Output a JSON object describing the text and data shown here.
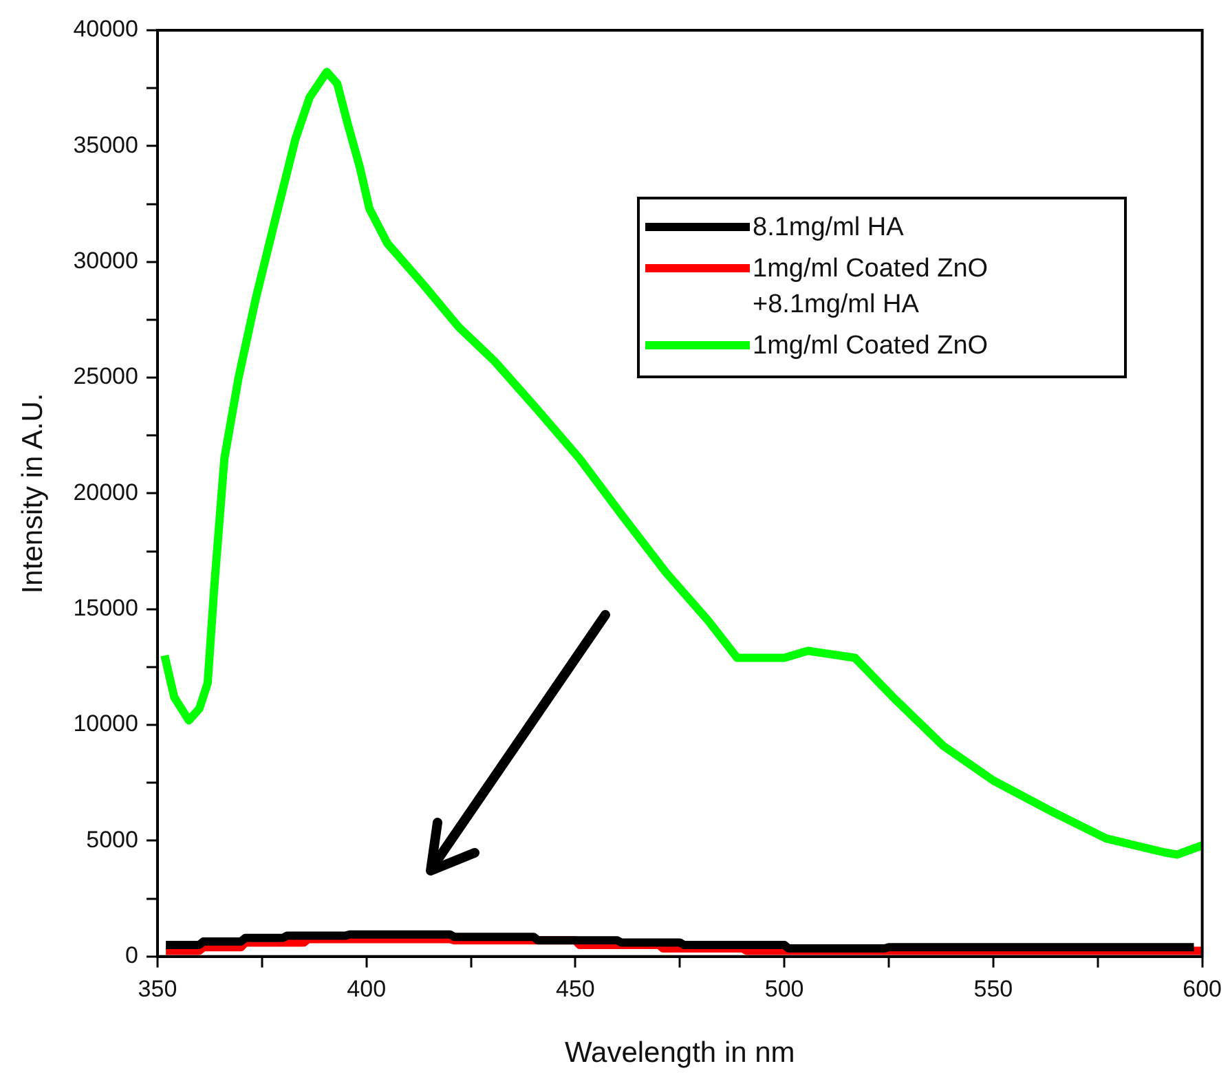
{
  "chart_data": {
    "type": "line",
    "xlabel": "Wavelength in nm",
    "ylabel": "Intensity in A.U.",
    "xlim": [
      350,
      600
    ],
    "ylim": [
      0,
      40000
    ],
    "xticks": [
      350,
      {
        "value": 375,
        "label": null
      },
      400,
      {
        "value": 425,
        "label": null
      },
      450,
      {
        "value": 475,
        "label": null
      },
      500,
      {
        "value": 525,
        "label": null
      },
      550,
      {
        "value": 575,
        "label": null
      },
      600
    ],
    "yticks": [
      0,
      {
        "value": 2500,
        "label": null
      },
      5000,
      {
        "value": 7500,
        "label": null
      },
      10000,
      {
        "value": 12500,
        "label": null
      },
      15000,
      {
        "value": 17500,
        "label": null
      },
      20000,
      {
        "value": 22500,
        "label": null
      },
      25000,
      {
        "value": 27500,
        "label": null
      },
      30000,
      {
        "value": 32500,
        "label": null
      },
      35000,
      {
        "value": 37500,
        "label": null
      },
      40000
    ],
    "grid": false,
    "legend": "top right",
    "marker": "none",
    "line_style": "solid",
    "series": [
      {
        "name": "8.1mg/ml HA",
        "color": "#000000",
        "x": [
          352,
          360,
          361,
          370,
          371,
          380,
          381,
          395,
          396,
          420,
          421,
          440,
          441,
          460,
          461,
          475,
          476,
          500,
          501,
          524,
          525,
          598
        ],
        "values": [
          500,
          500,
          650,
          650,
          800,
          800,
          900,
          900,
          950,
          950,
          850,
          850,
          700,
          700,
          600,
          600,
          500,
          500,
          350,
          350,
          400,
          400
        ]
      },
      {
        "name": "1mg/ml Coated ZnO +8.1mg/ml HA",
        "color": "#ff0000",
        "x": [
          352,
          360,
          361,
          370,
          371,
          385,
          386,
          420,
          421,
          450,
          451,
          470,
          471,
          490,
          491,
          600
        ],
        "values": [
          250,
          250,
          400,
          400,
          600,
          600,
          750,
          750,
          700,
          700,
          500,
          500,
          350,
          350,
          250,
          250
        ]
      },
      {
        "name": "1mg/ml Coated ZnO",
        "color": "#00ff00",
        "x": [
          351.7,
          354,
          357.5,
          360,
          362,
          363.6,
          366,
          369.4,
          373.5,
          378,
          383,
          386.4,
          390.5,
          393,
          395.6,
          398.4,
          400.7,
          405,
          413.7,
          422,
          430.7,
          441,
          451,
          461.4,
          471.6,
          481.8,
          488.7,
          500,
          505.7,
          516.9,
          526,
          538,
          550,
          563.6,
          577,
          590.8,
          594,
          600
        ],
        "values": [
          13000,
          11200,
          10200,
          10700,
          11800,
          16000,
          21500,
          25000,
          28400,
          31700,
          35300,
          37100,
          38200,
          37700,
          35900,
          34100,
          32300,
          30800,
          29000,
          27200,
          25700,
          23600,
          21500,
          19000,
          16600,
          14500,
          12900,
          12900,
          13200,
          12900,
          11200,
          9100,
          7600,
          6300,
          5100,
          4500,
          4400,
          4800
        ]
      }
    ]
  }
}
